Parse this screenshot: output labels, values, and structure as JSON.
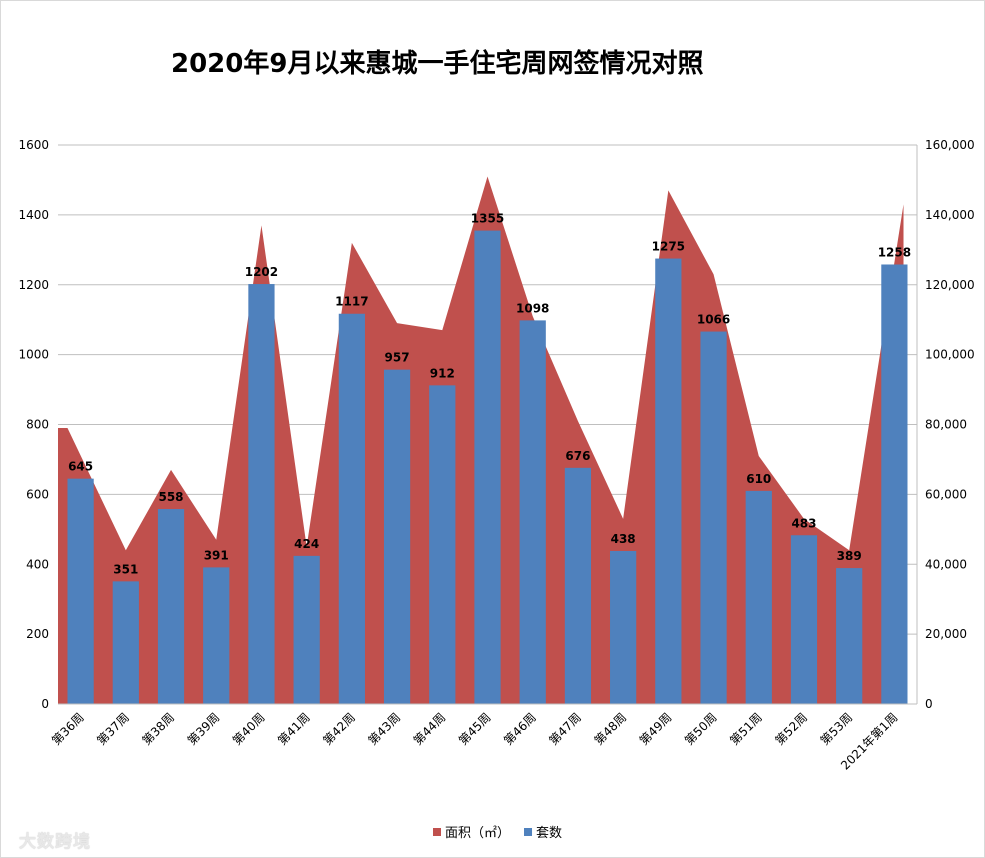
{
  "chart_data": {
    "type": "bar",
    "title": "2020年9月以来惠城一手住宅周网签情况对照",
    "categories": [
      "第36周",
      "第37周",
      "第38周",
      "第39周",
      "第40周",
      "第41周",
      "第42周",
      "第43周",
      "第44周",
      "第45周",
      "第46周",
      "第47周",
      "第48周",
      "第49周",
      "第50周",
      "第51周",
      "第52周",
      "第53周",
      "2021年第1周"
    ],
    "series": [
      {
        "name": "面积（㎡）",
        "type": "area",
        "axis": "right",
        "color": "#c0504d",
        "values": [
          79000,
          44000,
          67000,
          47000,
          137000,
          45000,
          132000,
          109000,
          107000,
          151000,
          111000,
          81000,
          53000,
          147000,
          123000,
          71000,
          53000,
          44000,
          143000
        ]
      },
      {
        "name": "套数",
        "type": "bar",
        "axis": "left",
        "color": "#4f81bd",
        "values": [
          645,
          351,
          558,
          391,
          1202,
          424,
          1117,
          957,
          912,
          1355,
          1098,
          676,
          438,
          1275,
          1066,
          610,
          483,
          389,
          1258
        ]
      }
    ],
    "y_left": {
      "min": 0,
      "max": 1600,
      "step": 200,
      "ticks": [
        "0",
        "200",
        "400",
        "600",
        "800",
        "1000",
        "1200",
        "1400",
        "1600"
      ]
    },
    "y_right": {
      "min": 0,
      "max": 160000,
      "step": 20000,
      "ticks": [
        "0",
        "20,000",
        "40,000",
        "60,000",
        "80,000",
        "100,000",
        "120,000",
        "140,000",
        "160,000"
      ]
    },
    "grid": true,
    "legend_position": "bottom"
  },
  "watermark_text": "大数跨境"
}
